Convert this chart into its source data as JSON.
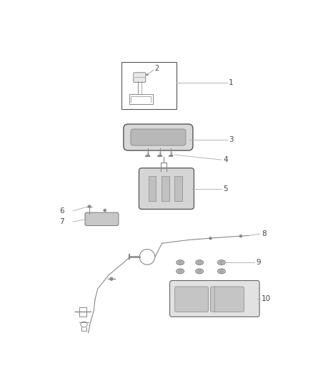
{
  "bg_color": "#ffffff",
  "lc": "#aaaaaa",
  "dc": "#444444",
  "part_color": "#888888",
  "fig_w": 4.38,
  "fig_h": 5.33,
  "dpi": 100
}
